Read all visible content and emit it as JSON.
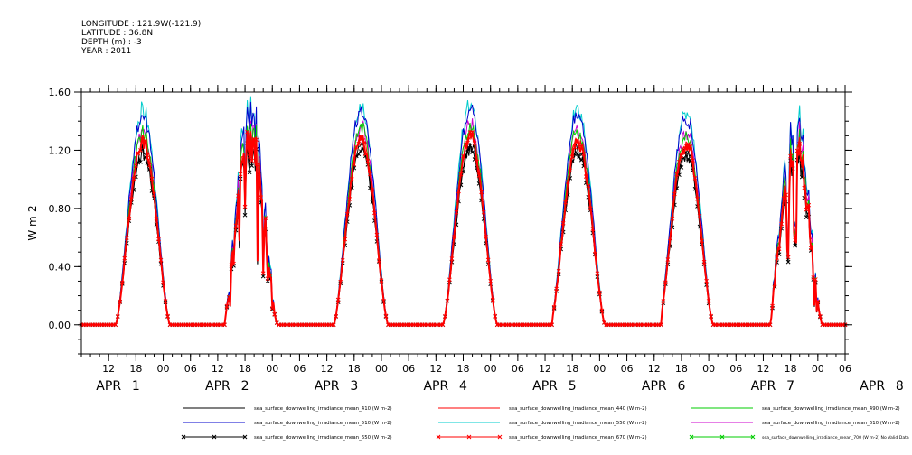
{
  "header": {
    "lines": [
      "LONGITUDE : 121.9W(-121.9)",
      "LATITUDE : 36.8N",
      "DEPTH (m) : -3",
      "YEAR : 2011"
    ]
  },
  "chart_data": {
    "type": "line",
    "title": "",
    "xlabel": "",
    "ylabel": "W m-2",
    "ylim": [
      -0.2,
      1.6
    ],
    "yticks": [
      0.0,
      0.4,
      0.8,
      1.2,
      1.6
    ],
    "ytick_labels": [
      "0.00",
      "0.40",
      "0.80",
      "1.20",
      "1.60"
    ],
    "x_range_hours": [
      6,
      174
    ],
    "hour_ticks": [
      {
        "h": 12,
        "label": "12"
      },
      {
        "h": 18,
        "label": "18"
      },
      {
        "h": 24,
        "label": "00"
      },
      {
        "h": 30,
        "label": "06"
      },
      {
        "h": 36,
        "label": "12"
      },
      {
        "h": 42,
        "label": "18"
      },
      {
        "h": 48,
        "label": "00"
      },
      {
        "h": 54,
        "label": "06"
      },
      {
        "h": 60,
        "label": "12"
      },
      {
        "h": 66,
        "label": "18"
      },
      {
        "h": 72,
        "label": "00"
      },
      {
        "h": 78,
        "label": "06"
      },
      {
        "h": 84,
        "label": "12"
      },
      {
        "h": 90,
        "label": "18"
      },
      {
        "h": 96,
        "label": "00"
      },
      {
        "h": 102,
        "label": "06"
      },
      {
        "h": 108,
        "label": "12"
      },
      {
        "h": 114,
        "label": "18"
      },
      {
        "h": 120,
        "label": "00"
      },
      {
        "h": 126,
        "label": "06"
      },
      {
        "h": 132,
        "label": "12"
      },
      {
        "h": 138,
        "label": "18"
      },
      {
        "h": 144,
        "label": "00"
      },
      {
        "h": 150,
        "label": "06"
      },
      {
        "h": 156,
        "label": "12"
      },
      {
        "h": 162,
        "label": "18"
      },
      {
        "h": 168,
        "label": "00"
      },
      {
        "h": 174,
        "label": "06"
      }
    ],
    "day_labels": [
      {
        "h": 12,
        "label": "APR"
      },
      {
        "h": 18,
        "label": "1"
      },
      {
        "h": 36,
        "label": "APR"
      },
      {
        "h": 42,
        "label": "2"
      },
      {
        "h": 60,
        "label": "APR"
      },
      {
        "h": 66,
        "label": "3"
      },
      {
        "h": 84,
        "label": "APR"
      },
      {
        "h": 90,
        "label": "4"
      },
      {
        "h": 108,
        "label": "APR"
      },
      {
        "h": 114,
        "label": "5"
      },
      {
        "h": 132,
        "label": "APR"
      },
      {
        "h": 138,
        "label": "6"
      },
      {
        "h": 156,
        "label": "APR"
      },
      {
        "h": 162,
        "label": "7"
      },
      {
        "h": 180,
        "label": "APR"
      },
      {
        "h": 186,
        "label": "8"
      }
    ],
    "days": [
      {
        "center": 19.5,
        "sunrise": 13.5,
        "sunset": 25.5,
        "peak_cyan": 1.47,
        "noisy": false
      },
      {
        "center": 43.2,
        "sunrise": 37.5,
        "sunset": 49.5,
        "peak_cyan": 1.58,
        "noisy": true
      },
      {
        "center": 67.5,
        "sunrise": 61.5,
        "sunset": 73.5,
        "peak_cyan": 1.5,
        "noisy": false
      },
      {
        "center": 91.5,
        "sunrise": 85.5,
        "sunset": 97.5,
        "peak_cyan": 1.51,
        "noisy": false
      },
      {
        "center": 115.2,
        "sunrise": 109.5,
        "sunset": 121.5,
        "peak_cyan": 1.48,
        "noisy": false
      },
      {
        "center": 139.0,
        "sunrise": 133.5,
        "sunset": 145.5,
        "peak_cyan": 1.46,
        "noisy": false
      },
      {
        "center": 163.0,
        "sunrise": 157.5,
        "sunset": 169.5,
        "peak_cyan": 1.53,
        "noisy": true
      }
    ],
    "series": [
      {
        "name": "sea_surface_downwelling_irradiance_mean_410 (W m-2)",
        "color": "#000000",
        "factor": 0.82,
        "marker": false
      },
      {
        "name": "sea_surface_downwelling_irradiance_mean_440 (W m-2)",
        "color": "#ff0000",
        "factor": 0.86,
        "marker": false
      },
      {
        "name": "sea_surface_downwelling_irradiance_mean_490 (W m-2)",
        "color": "#00cc00",
        "factor": 0.9,
        "marker": false
      },
      {
        "name": "sea_surface_downwelling_irradiance_mean_510 (W m-2)",
        "color": "#0000cc",
        "factor": 0.98,
        "marker": false
      },
      {
        "name": "sea_surface_downwelling_irradiance_mean_550 (W m-2)",
        "color": "#00cccc",
        "factor": 1.0,
        "marker": false
      },
      {
        "name": "sea_surface_downwelling_irradiance_mean_610 (W m-2)",
        "color": "#cc00cc",
        "factor": 0.91,
        "marker": false
      },
      {
        "name": "sea_surface_downwelling_irradiance_mean_650 (W m-2)",
        "color": "#000000",
        "factor": 0.8,
        "marker": true
      },
      {
        "name": "sea_surface_downwelling_irradiance_mean_670 (W m-2)",
        "color": "#ff0000",
        "factor": 0.85,
        "marker": true
      },
      {
        "name": "sea_surface_downwelling_irradiance_mean_700 (W m-2) No Valid Data",
        "color": "#00cc00",
        "factor": 0,
        "marker": true,
        "no_data": true
      }
    ]
  }
}
